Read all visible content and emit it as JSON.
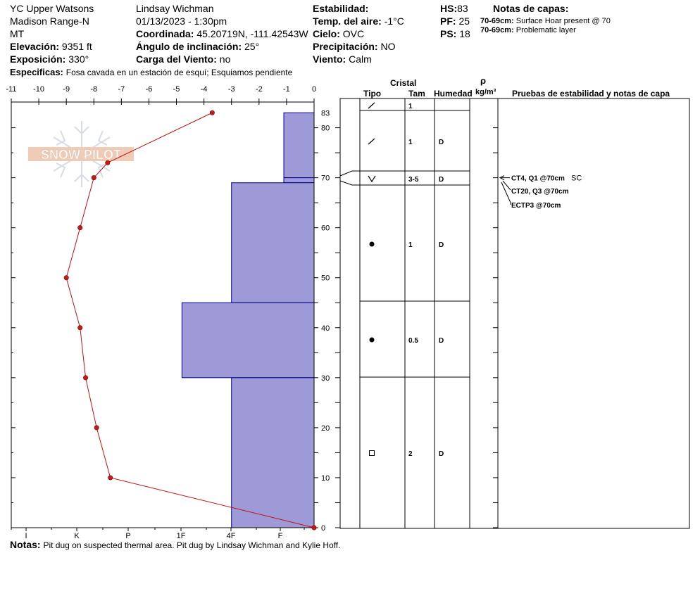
{
  "header": {
    "location": "YC Upper Watsons",
    "range": "Madison Range-N",
    "state": "MT",
    "elevation_label": "Elevación:",
    "elevation": "9351 ft",
    "aspect_label": "Exposición:",
    "aspect": "330°",
    "specifics_label": "Especificas:",
    "specifics": "Fosa cavada en un estación de esquí; Esquiamos pendiente",
    "observer": "Lindsay Wichman",
    "datetime": "01/13/2023 - 1:30pm",
    "coord_label": "Coordinada:",
    "coord": "45.20719N, -111.42543W",
    "slope_label": "Ángulo de inclinación:",
    "slope": "25°",
    "wind_load_label": "Carga del Viento:",
    "wind_load": "no",
    "stability_label": "Estabilidad:",
    "stability": "",
    "air_temp_label": "Temp. del aire:",
    "air_temp": "-1°C",
    "sky_label": "Cielo:",
    "sky": "OVC",
    "precip_label": "Precipitación:",
    "precip": "NO",
    "wind_label": "Viento:",
    "wind": "Calm",
    "hs_label": "HS:",
    "hs": "83",
    "pf_label": "PF:",
    "pf": "25",
    "ps_label": "PS:",
    "ps": "18",
    "layer_notes_title": "Notas de capas:",
    "layer_notes": [
      {
        "range": "70-69cm:",
        "text": "Surface Hoar present @ 70"
      },
      {
        "range": "70-69cm:",
        "text": "Problematic layer"
      }
    ]
  },
  "logo_text": "SNOW PILOT",
  "notes_label": "Notas:",
  "notes": "Pit dug on suspected thermal area. Pit dug by Lindsay Wichman and Kylie Hoff.",
  "columns": {
    "crystal": "Cristal",
    "type": "Tipo",
    "size": "Tam",
    "moisture": "Humedad",
    "density_symbol": "ρ",
    "density_unit": "kg/m³",
    "tests": "Pruebas de estabilidad y notas de capa"
  },
  "stability_tests": [
    {
      "text": "CT4, Q1 @70cm",
      "extra": "SC"
    },
    {
      "text": "CT20, Q3 @70cm"
    },
    {
      "text": "ECTP3 @70cm"
    }
  ],
  "colors": {
    "hardness_fill": "#9d9ad7",
    "hardness_edge": "#00008b",
    "temp_line": "#c01010",
    "temp_point": "#c41a1a"
  },
  "chart_data": {
    "type": "snow_profile",
    "height_axis": {
      "range": [
        0,
        83
      ],
      "ticks": [
        0,
        10,
        20,
        30,
        40,
        50,
        60,
        70,
        80,
        83
      ],
      "unit": "cm"
    },
    "temperature_axis": {
      "range": [
        -11,
        0
      ],
      "ticks": [
        -11,
        -10,
        -9,
        -8,
        -7,
        -6,
        -5,
        -4,
        -3,
        -2,
        -1,
        0
      ],
      "unit": "°C"
    },
    "hardness_axis": {
      "ticks": [
        "I",
        "K",
        "P",
        "1F",
        "4F",
        "F"
      ]
    },
    "temperature_profile": [
      {
        "height": 83,
        "temp": -3.7
      },
      {
        "height": 73,
        "temp": -7.5
      },
      {
        "height": 70,
        "temp": -8.0
      },
      {
        "height": 60,
        "temp": -8.5
      },
      {
        "height": 50,
        "temp": -9.0
      },
      {
        "height": 40,
        "temp": -8.5
      },
      {
        "height": 30,
        "temp": -8.3
      },
      {
        "height": 20,
        "temp": -7.9
      },
      {
        "height": 10,
        "temp": -7.4
      },
      {
        "height": 0,
        "temp": 0
      }
    ],
    "layers": [
      {
        "top": 83,
        "bottom": 70,
        "hardness": "F",
        "crystal": "precipitation-particles",
        "size": "1",
        "moisture": "D",
        "extent": 1.1
      },
      {
        "top": 70,
        "bottom": 69,
        "hardness": "F",
        "crystal": "surface-hoar",
        "size": "3-5",
        "moisture": "D",
        "extent": 1.1
      },
      {
        "top": 69,
        "bottom": 45,
        "hardness": "4F",
        "crystal": "rounded-grains",
        "size": "1",
        "moisture": "D",
        "extent": 3.0
      },
      {
        "top": 45,
        "bottom": 30,
        "hardness": "1F",
        "crystal": "rounded-grains",
        "size": "0.5",
        "moisture": "D",
        "extent": 4.8
      },
      {
        "top": 30,
        "bottom": 0,
        "hardness": "4F",
        "crystal": "faceted-crystals",
        "size": "2",
        "moisture": "D",
        "extent": 3.0
      }
    ],
    "layer_table_rows": [
      {
        "crystal": "precipitation-particles",
        "size": "1",
        "moisture": ""
      },
      {
        "crystal": "precipitation-particles",
        "size": "1",
        "moisture": "D"
      },
      {
        "crystal": "surface-hoar",
        "size": "3-5",
        "moisture": "D"
      },
      {
        "crystal": "rounded-grains",
        "size": "1",
        "moisture": "D"
      },
      {
        "crystal": "rounded-grains",
        "size": "0.5",
        "moisture": "D"
      },
      {
        "crystal": "faceted-crystals",
        "size": "2",
        "moisture": "D"
      }
    ],
    "test_height": 70
  }
}
